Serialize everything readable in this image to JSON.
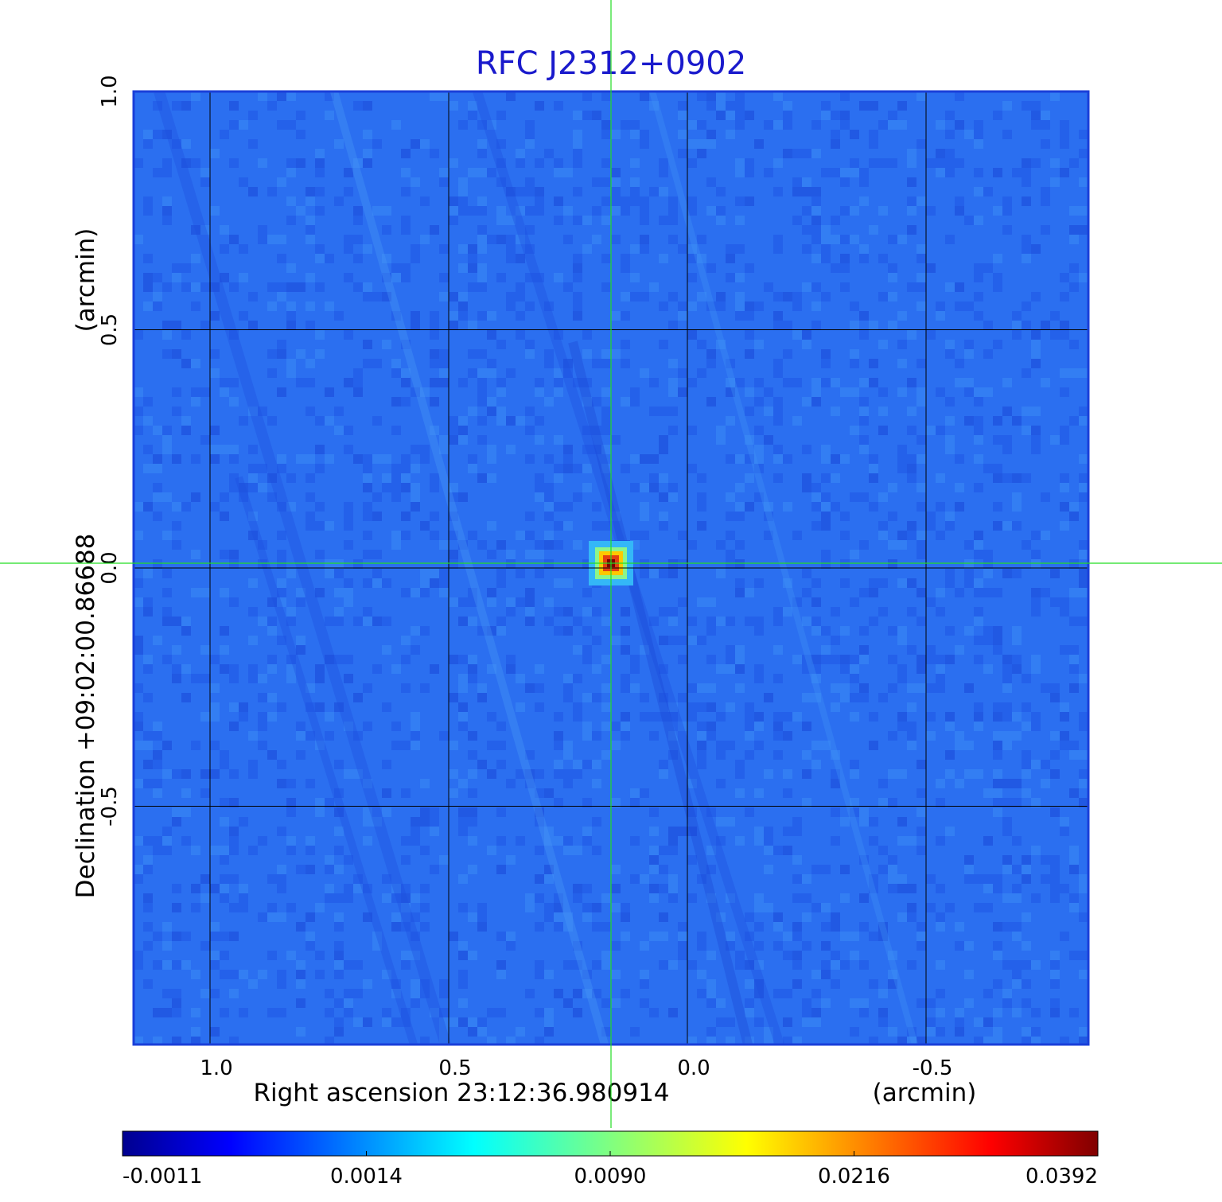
{
  "chart_data": {
    "type": "heatmap",
    "title": "RFC J2312+0902",
    "xlabel": "Right ascension  23:12:36.980914",
    "xunit": "(arcmin)",
    "ylabel": "Declination  +09:02:00.86688",
    "yunit": "(arcmin)",
    "x_ticks": [
      "1.0",
      "0.5",
      "0.0",
      "-0.5"
    ],
    "x_tick_values": [
      1.0,
      0.5,
      0.0,
      -0.5
    ],
    "y_ticks": [
      "1.0",
      "0.5",
      "0.0",
      "-0.5"
    ],
    "y_tick_values": [
      1.0,
      0.5,
      0.0,
      -0.5
    ],
    "xlim": [
      1.16,
      -0.84
    ],
    "ylim": [
      -1.0,
      1.0
    ],
    "grid": true,
    "colormap": "jet",
    "colorbar_ticks": [
      "-0.0011",
      "0.0014",
      "0.0090",
      "0.0216",
      "0.0392"
    ],
    "colorbar_values": [
      -0.0011,
      0.0014,
      0.009,
      0.0216,
      0.0392
    ],
    "source": {
      "x": 0.16,
      "y": 0.01,
      "peak": 0.0392
    },
    "crosshair": {
      "x": 0.16,
      "y": 0.01,
      "color": "#22dd22"
    },
    "colors": {
      "title": "#1a1acc",
      "frame": "#1a3fd9",
      "grid": "#000000"
    }
  }
}
